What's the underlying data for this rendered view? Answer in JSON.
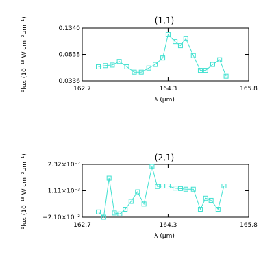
{
  "style": {
    "line_color": "#40e0d0",
    "axis_color": "#000000",
    "background": "#ffffff"
  },
  "chart_data": [
    {
      "type": "line",
      "title": "(1,1)",
      "xlabel": "λ (μm)",
      "ylabel": "Flux (10⁻¹⁸ W cm⁻²μm⁻¹)",
      "xlim": [
        162.7,
        165.8
      ],
      "ylim": [
        0.0336,
        0.134
      ],
      "x_ticks": [
        {
          "value": 162.7,
          "label": "162.7"
        },
        {
          "value": 164.3,
          "label": "164.3"
        },
        {
          "value": 165.8,
          "label": "165.8"
        }
      ],
      "y_ticks": [
        {
          "value": 0.0336,
          "label": "0.0336"
        },
        {
          "value": 0.0838,
          "label": "0.0838"
        },
        {
          "value": 0.134,
          "label": "0.1340"
        }
      ],
      "marker": "square",
      "series": [
        {
          "x": [
            163.0,
            163.13,
            163.26,
            163.39,
            163.53,
            163.67,
            163.8,
            163.94,
            164.06,
            164.2,
            164.3,
            164.43,
            164.53,
            164.63,
            164.77,
            164.9,
            165.0,
            165.13,
            165.26,
            165.38
          ],
          "y": [
            0.0604,
            0.0626,
            0.0637,
            0.0705,
            0.0604,
            0.0503,
            0.0503,
            0.0581,
            0.0648,
            0.0771,
            0.1218,
            0.1084,
            0.1006,
            0.114,
            0.0815,
            0.0537,
            0.0537,
            0.0648,
            0.0738,
            0.0425
          ]
        }
      ]
    },
    {
      "type": "line",
      "title": "(2,1)",
      "xlabel": "λ (μm)",
      "ylabel": "Flux (10⁻¹⁸ W cm⁻²μm⁻¹)",
      "xlim": [
        162.7,
        165.8
      ],
      "ylim": [
        -0.021,
        0.0232
      ],
      "x_ticks": [
        {
          "value": 162.7,
          "label": "162.7"
        },
        {
          "value": 164.3,
          "label": "164.3"
        },
        {
          "value": 165.8,
          "label": "165.8"
        }
      ],
      "y_ticks": [
        {
          "value": -0.021,
          "label": "−2.10×10⁻²"
        },
        {
          "value": 0.00111,
          "label": "1.11×10⁻³"
        },
        {
          "value": 0.0232,
          "label": "2.32×10⁻²"
        }
      ],
      "marker": "square",
      "series": [
        {
          "x": [
            163.0,
            163.1,
            163.2,
            163.3,
            163.4,
            163.5,
            163.61,
            163.73,
            163.85,
            164.0,
            164.1,
            164.2,
            164.3,
            164.43,
            164.53,
            164.63,
            164.77,
            164.9,
            165.0,
            165.1,
            165.23,
            165.34
          ],
          "y": [
            -0.0166,
            -0.021,
            0.0117,
            -0.0175,
            -0.0183,
            -0.0144,
            -0.0078,
            0.0002,
            -0.01,
            0.0214,
            0.0047,
            0.0051,
            0.0051,
            0.0033,
            0.0029,
            0.0024,
            0.0024,
            -0.0144,
            -0.0051,
            -0.0069,
            -0.0144,
            0.0051
          ]
        }
      ]
    }
  ]
}
